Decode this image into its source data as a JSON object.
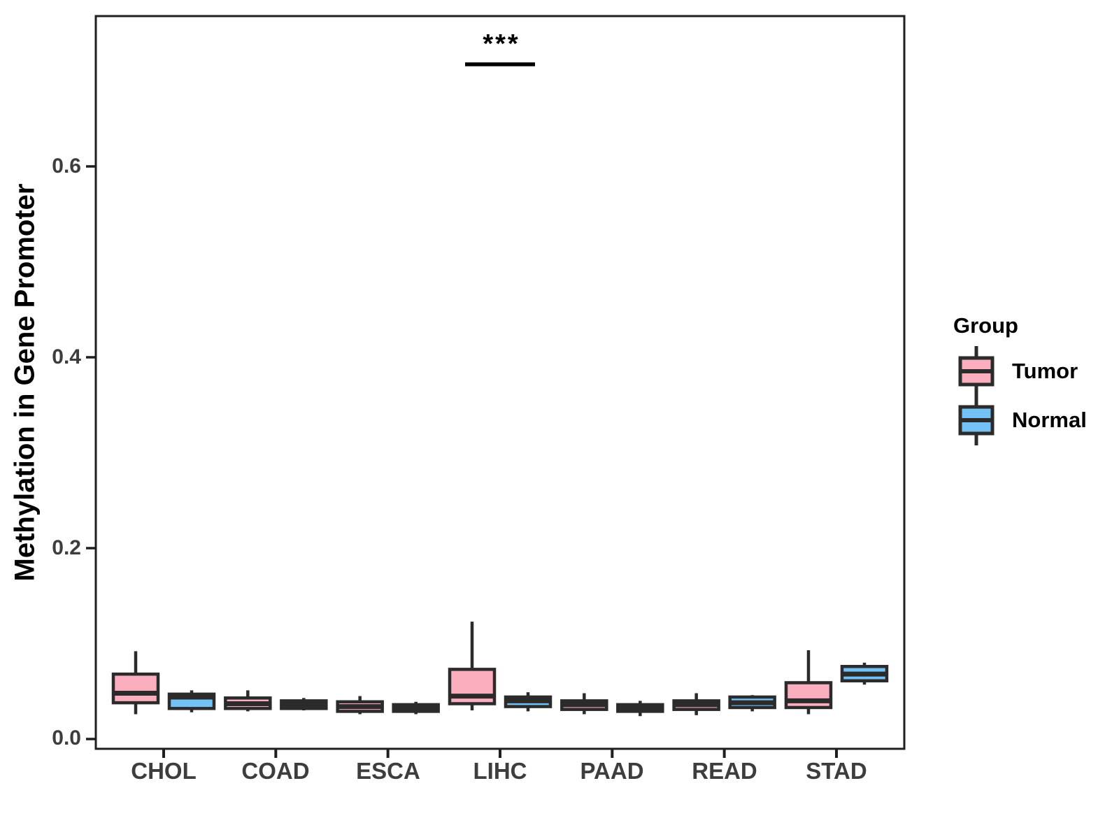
{
  "chart_data": {
    "type": "boxplot",
    "title": "",
    "xlabel": "",
    "ylabel": "Methylation in Gene Promoter",
    "categories": [
      "CHOL",
      "COAD",
      "ESCA",
      "LIHC",
      "PAAD",
      "READ",
      "STAD"
    ],
    "y_ticks": [
      0.0,
      0.2,
      0.4,
      0.6
    ],
    "y_tick_labels": [
      "0.0",
      "0.2",
      "0.4",
      "0.6"
    ],
    "ylim": [
      -0.01,
      0.757
    ],
    "grid": "off",
    "panel_border": true,
    "axis_color": "#1f1f1f",
    "tick_text_color": "#3d3d3d",
    "box_outline_color": "#2b2b2b",
    "legend": {
      "title": "Group",
      "position": "right",
      "entries": [
        {
          "label": "Tumor",
          "color": "#FAAEBE"
        },
        {
          "label": "Normal",
          "color": "#74C1F5"
        }
      ]
    },
    "series": [
      {
        "name": "Tumor",
        "color": "#FAAEBE",
        "boxes": [
          {
            "category": "CHOL",
            "low": 0.026,
            "q1": 0.038,
            "median": 0.048,
            "q3": 0.068,
            "high": 0.092
          },
          {
            "category": "COAD",
            "low": 0.029,
            "q1": 0.032,
            "median": 0.037,
            "q3": 0.043,
            "high": 0.051
          },
          {
            "category": "ESCA",
            "low": 0.026,
            "q1": 0.029,
            "median": 0.034,
            "q3": 0.039,
            "high": 0.045
          },
          {
            "category": "LIHC",
            "low": 0.03,
            "q1": 0.037,
            "median": 0.045,
            "q3": 0.073,
            "high": 0.123
          },
          {
            "category": "PAAD",
            "low": 0.026,
            "q1": 0.031,
            "median": 0.036,
            "q3": 0.04,
            "high": 0.048
          },
          {
            "category": "READ",
            "low": 0.025,
            "q1": 0.031,
            "median": 0.036,
            "q3": 0.04,
            "high": 0.048
          },
          {
            "category": "STAD",
            "low": 0.026,
            "q1": 0.033,
            "median": 0.04,
            "q3": 0.059,
            "high": 0.093
          }
        ]
      },
      {
        "name": "Normal",
        "color": "#74C1F5",
        "boxes": [
          {
            "category": "CHOL",
            "low": 0.028,
            "q1": 0.032,
            "median": 0.044,
            "q3": 0.047,
            "high": 0.051
          },
          {
            "category": "COAD",
            "low": 0.03,
            "q1": 0.032,
            "median": 0.036,
            "q3": 0.04,
            "high": 0.043
          },
          {
            "category": "ESCA",
            "low": 0.026,
            "q1": 0.029,
            "median": 0.033,
            "q3": 0.036,
            "high": 0.039
          },
          {
            "category": "LIHC",
            "low": 0.029,
            "q1": 0.034,
            "median": 0.04,
            "q3": 0.044,
            "high": 0.049
          },
          {
            "category": "PAAD",
            "low": 0.024,
            "q1": 0.029,
            "median": 0.032,
            "q3": 0.036,
            "high": 0.04
          },
          {
            "category": "READ",
            "low": 0.029,
            "q1": 0.033,
            "median": 0.038,
            "q3": 0.044,
            "high": 0.046
          },
          {
            "category": "STAD",
            "low": 0.057,
            "q1": 0.061,
            "median": 0.068,
            "q3": 0.076,
            "high": 0.08
          }
        ]
      }
    ],
    "annotation": {
      "label": "***",
      "category": "LIHC",
      "bar_y": 0.707,
      "spans": [
        "Tumor",
        "Normal"
      ]
    }
  }
}
